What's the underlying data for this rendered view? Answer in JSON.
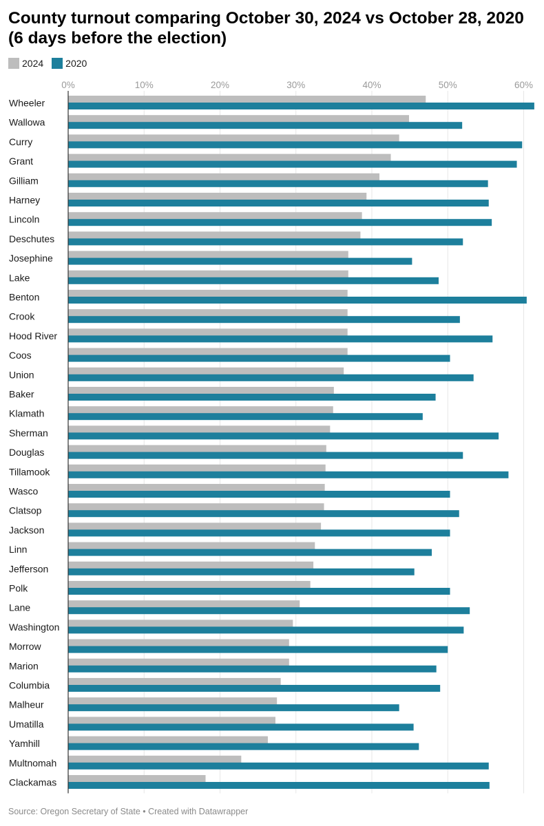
{
  "title": "County turnout comparing October 30, 2024 vs October 28, 2020 (6 days before the election)",
  "legend": [
    {
      "label": "2024",
      "color": "#bdbdbd"
    },
    {
      "label": "2020",
      "color": "#1d7f9c"
    }
  ],
  "source": "Source: Oregon Secretary of State • Created with Datawrapper",
  "chart_data": {
    "type": "bar",
    "orientation": "horizontal",
    "xlim": [
      0,
      61.5
    ],
    "ticks": [
      0,
      10,
      20,
      30,
      40,
      50,
      60
    ],
    "tick_labels": [
      "0%",
      "10%",
      "20%",
      "30%",
      "40%",
      "50%",
      "60%"
    ],
    "grid": true,
    "legend_position": "top-left",
    "categories": [
      "Wheeler",
      "Wallowa",
      "Curry",
      "Grant",
      "Gilliam",
      "Harney",
      "Lincoln",
      "Deschutes",
      "Josephine",
      "Lake",
      "Benton",
      "Crook",
      "Hood River",
      "Coos",
      "Union",
      "Baker",
      "Klamath",
      "Sherman",
      "Douglas",
      "Tillamook",
      "Wasco",
      "Clatsop",
      "Jackson",
      "Linn",
      "Jefferson",
      "Polk",
      "Lane",
      "Washington",
      "Morrow",
      "Marion",
      "Columbia",
      "Malheur",
      "Umatilla",
      "Yamhill",
      "Multnomah",
      "Clackamas"
    ],
    "series": [
      {
        "name": "2024",
        "color": "#bdbdbd",
        "values": [
          47.1,
          44.9,
          43.6,
          42.5,
          41.0,
          39.3,
          38.7,
          38.5,
          36.9,
          36.9,
          36.8,
          36.8,
          36.8,
          36.8,
          36.3,
          35.0,
          34.9,
          34.5,
          34.0,
          33.9,
          33.8,
          33.7,
          33.3,
          32.5,
          32.3,
          31.9,
          30.5,
          29.6,
          29.1,
          29.1,
          28.0,
          27.5,
          27.3,
          26.3,
          22.8,
          18.1
        ]
      },
      {
        "name": "2020",
        "color": "#1d7f9c",
        "values": [
          61.4,
          51.9,
          59.8,
          59.1,
          55.3,
          55.4,
          55.8,
          52.0,
          45.3,
          48.8,
          60.4,
          51.6,
          55.9,
          50.3,
          53.4,
          48.4,
          46.7,
          56.7,
          52.0,
          58.0,
          50.3,
          51.5,
          50.3,
          47.9,
          45.6,
          50.3,
          52.9,
          52.1,
          50.0,
          48.5,
          49.0,
          43.6,
          45.5,
          46.2,
          55.4,
          55.5
        ]
      }
    ]
  }
}
